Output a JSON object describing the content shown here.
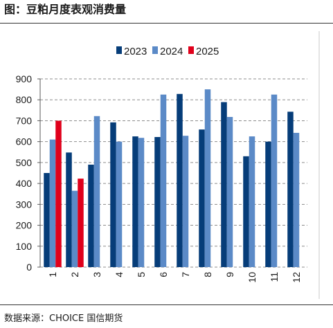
{
  "source": "数据来源：CHOICE 国信期货",
  "chart_data": {
    "type": "bar",
    "title": "图：豆粕月度表观消费量",
    "categories": [
      "1",
      "2",
      "3",
      "4",
      "5",
      "6",
      "7",
      "8",
      "9",
      "10",
      "11",
      "12"
    ],
    "series": [
      {
        "name": "2023",
        "color": "#063d79",
        "values": [
          450,
          548,
          490,
          692,
          625,
          622,
          828,
          658,
          789,
          530,
          600,
          743
        ]
      },
      {
        "name": "2024",
        "color": "#5b8ac7",
        "values": [
          610,
          365,
          722,
          600,
          618,
          825,
          628,
          850,
          718,
          625,
          825,
          642
        ]
      },
      {
        "name": "2025",
        "color": "#e0001b",
        "values": [
          700,
          423,
          null,
          null,
          null,
          null,
          null,
          null,
          null,
          null,
          null,
          null
        ]
      }
    ],
    "ylim": [
      0,
      900
    ],
    "yticks": [
      0,
      100,
      200,
      300,
      400,
      500,
      600,
      700,
      800,
      900
    ],
    "grid": true,
    "legend": "top-center"
  }
}
